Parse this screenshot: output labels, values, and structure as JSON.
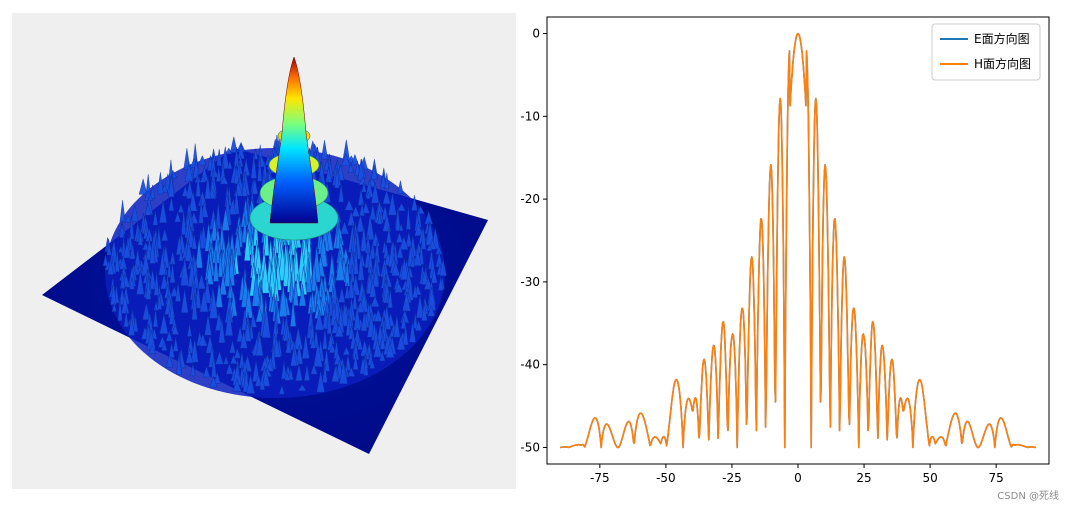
{
  "chart_data": [
    {
      "type": "surface",
      "title": "",
      "colormap": "jet",
      "peak": "center",
      "background": "#efefef"
    },
    {
      "type": "line",
      "title": "",
      "xlim": [
        -95,
        95
      ],
      "ylim": [
        -52,
        2
      ],
      "xticks": [
        -75,
        -50,
        -25,
        0,
        25,
        50,
        75
      ],
      "yticks": [
        0,
        -10,
        -20,
        -30,
        -40,
        -50
      ],
      "legend_position": "top-right",
      "series": [
        {
          "name": "E面方向图",
          "color": "#1f77b4",
          "hidden_under_next": true
        },
        {
          "name": "H面方向图",
          "color": "#ff7f0e"
        }
      ],
      "key_points": {
        "x": [
          -90,
          -82,
          -75,
          -68,
          -62,
          -57,
          -52,
          -47,
          -44,
          -40,
          -36,
          -33,
          -28,
          -25,
          -21,
          -18,
          -15,
          -11,
          -8,
          -4,
          -2,
          0,
          2,
          4,
          8,
          11,
          15,
          18,
          21,
          25,
          28,
          33,
          36,
          40,
          44,
          47,
          52,
          57,
          62,
          68,
          75,
          82,
          90
        ],
        "y": [
          -50,
          -49.6,
          -45,
          -50,
          -44.5,
          -47,
          -49.5,
          -42.5,
          -39.5,
          -45.5,
          -39.5,
          -38.5,
          -34.5,
          -36.5,
          -33,
          -27.5,
          -24,
          -17.5,
          -10,
          -3,
          -0.5,
          0,
          -0.5,
          -3,
          -10,
          -17.5,
          -24,
          -27.5,
          -33,
          -36.5,
          -34.5,
          -38.5,
          -39.5,
          -45.5,
          -39.5,
          -42.5,
          -49.5,
          -47,
          -44.5,
          -50,
          -45,
          -49.6,
          -50
        ]
      }
    }
  ],
  "watermark": "CSDN @死线"
}
